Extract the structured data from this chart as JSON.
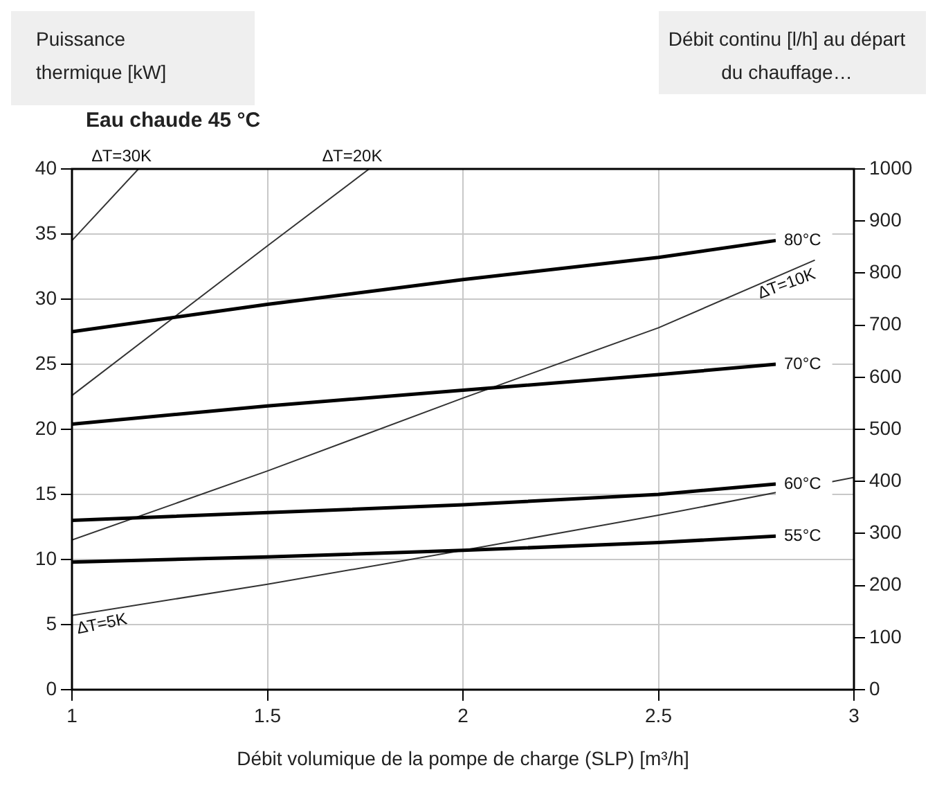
{
  "chart_data": {
    "type": "line",
    "title": "Eau chaude 45 °C",
    "xlabel": "Débit volumique de la pompe de charge (SLP) [m³/h]",
    "ylabel": "Puissance thermique [kW]",
    "y2label": "Débit continu [l/h] au départ du chauffage…",
    "xlim": [
      1,
      3
    ],
    "xticks": [
      1,
      1.5,
      2,
      2.5,
      3
    ],
    "ylim": [
      0,
      40
    ],
    "yticks": [
      0,
      5,
      10,
      15,
      20,
      25,
      30,
      35,
      40
    ],
    "y2lim": [
      0,
      1000
    ],
    "y2ticks": [
      0,
      100,
      200,
      300,
      400,
      500,
      600,
      700,
      800,
      900,
      1000
    ],
    "grid": true,
    "legend": false,
    "marker": "none",
    "line_style": "solid",
    "series": [
      {
        "name": "80°C",
        "color": "#000000",
        "x": [
          1,
          1.5,
          2,
          2.5,
          2.8
        ],
        "values": [
          27.5,
          29.6,
          31.5,
          33.2,
          34.5
        ]
      },
      {
        "name": "70°C",
        "color": "#000000",
        "x": [
          1,
          1.5,
          2,
          2.5,
          2.8
        ],
        "values": [
          20.4,
          21.8,
          23.0,
          24.2,
          25.0
        ]
      },
      {
        "name": "60°C",
        "color": "#000000",
        "x": [
          1,
          1.5,
          2,
          2.5,
          2.8
        ],
        "values": [
          13.0,
          13.6,
          14.2,
          15.0,
          15.8
        ]
      },
      {
        "name": "55°C",
        "color": "#000000",
        "x": [
          1,
          1.5,
          2,
          2.5,
          2.8
        ],
        "values": [
          9.8,
          10.2,
          10.7,
          11.3,
          11.8
        ]
      },
      {
        "color": "#333333",
        "x": [
          1,
          1.17
        ],
        "values": [
          34.5,
          40
        ]
      },
      {
        "color": "#333333",
        "x": [
          1,
          1.5,
          1.76
        ],
        "values": [
          22.6,
          34.1,
          40
        ]
      },
      {
        "color": "#333333",
        "x": [
          1,
          1.5,
          2,
          2.5,
          2.9
        ],
        "values": [
          11.5,
          16.8,
          22.4,
          27.8,
          33.0
        ]
      },
      {
        "color": "#333333",
        "x": [
          1,
          1.5,
          2,
          2.5,
          3
        ],
        "values": [
          5.7,
          8.1,
          10.7,
          13.4,
          16.3
        ]
      }
    ],
    "annotations": [
      {
        "text": "∆T=30K",
        "x": 1.17,
        "y": 40
      },
      {
        "text": "∆T=20K",
        "x": 1.76,
        "y": 40
      },
      {
        "text": "∆T=10K",
        "x": 2.9,
        "y": 33
      },
      {
        "text": "∆T=5K",
        "x": 1,
        "y": 5.7
      }
    ]
  }
}
